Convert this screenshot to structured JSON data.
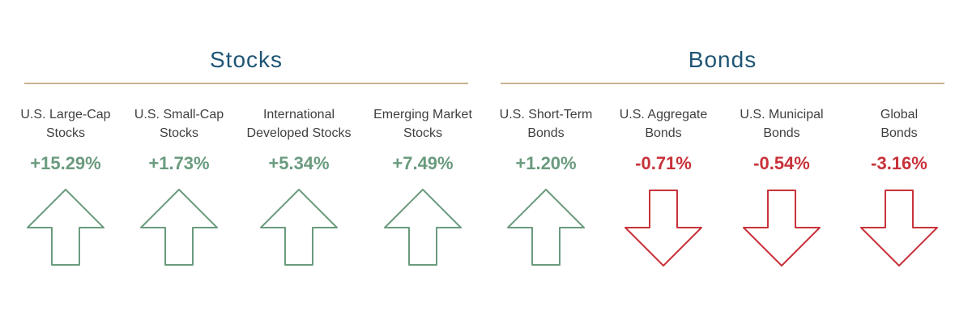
{
  "groups": {
    "stocks": {
      "title": "Stocks"
    },
    "bonds": {
      "title": "Bonds"
    }
  },
  "colors": {
    "title": "#1f5575",
    "rule": "#c8b58e",
    "up": "#6a9b7e",
    "down": "#c8323a",
    "label": "#3f3f3f"
  },
  "items": [
    {
      "label": "U.S. Large-Cap\nStocks",
      "value": "+15.29%",
      "direction": "up",
      "arrow_icon": "arrow-up-icon"
    },
    {
      "label": "U.S. Small-Cap\nStocks",
      "value": "+1.73%",
      "direction": "up",
      "arrow_icon": "arrow-up-icon"
    },
    {
      "label": "International\nDeveloped Stocks",
      "value": "+5.34%",
      "direction": "up",
      "arrow_icon": "arrow-up-icon"
    },
    {
      "label": "Emerging Market\nStocks",
      "value": "+7.49%",
      "direction": "up",
      "arrow_icon": "arrow-up-icon"
    },
    {
      "label": "U.S. Short-Term\nBonds",
      "value": "+1.20%",
      "direction": "up",
      "arrow_icon": "arrow-up-icon"
    },
    {
      "label": "U.S. Aggregate\nBonds",
      "value": "-0.71%",
      "direction": "down",
      "arrow_icon": "arrow-down-icon"
    },
    {
      "label": "U.S. Municipal\nBonds",
      "value": "-0.54%",
      "direction": "down",
      "arrow_icon": "arrow-down-icon"
    },
    {
      "label": "Global\nBonds",
      "value": "-3.16%",
      "direction": "down",
      "arrow_icon": "arrow-down-icon"
    }
  ]
}
